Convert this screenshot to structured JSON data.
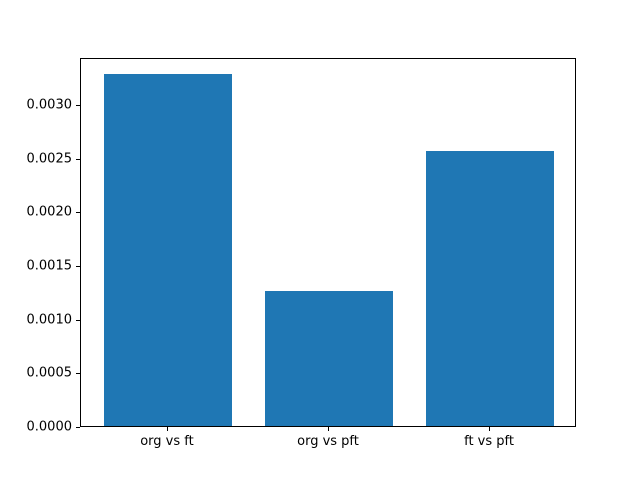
{
  "chart_data": {
    "type": "bar",
    "categories": [
      "org vs ft",
      "org vs pft",
      "ft vs pft"
    ],
    "values": [
      0.00328,
      0.00126,
      0.00256
    ],
    "title": "",
    "xlabel": "",
    "ylabel": "",
    "ylim": [
      0,
      0.003438
    ],
    "xlim": [
      -0.54,
      2.54
    ],
    "bar_width_fraction": 0.8,
    "yticks": [
      0.0,
      0.0005,
      0.001,
      0.0015,
      0.002,
      0.0025,
      0.003
    ],
    "ytick_labels": [
      "0.0000",
      "0.0005",
      "0.0010",
      "0.0015",
      "0.0020",
      "0.0025",
      "0.0030"
    ],
    "bar_color": "#1f77b4",
    "axis_color": "#000000",
    "background_color": "#ffffff",
    "grid": false,
    "legend": null
  }
}
